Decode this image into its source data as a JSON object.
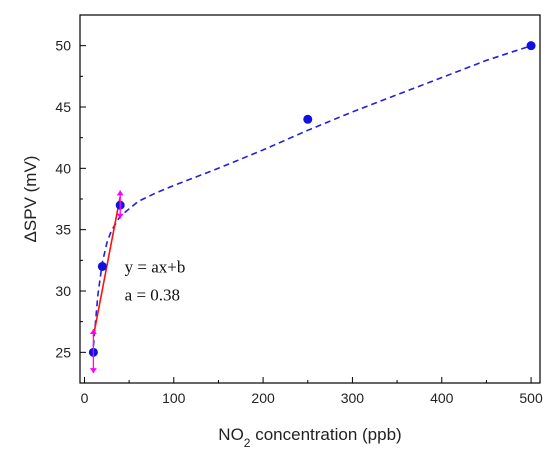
{
  "chart_data": {
    "type": "scatter",
    "title": "",
    "xlabel": {
      "main": "NO",
      "sub": "2",
      "rest": " concentration (ppb)"
    },
    "ylabel": "ΔSPV (mV)",
    "xlim": [
      -5,
      510
    ],
    "ylim": [
      22.5,
      52.5
    ],
    "xticks": [
      0,
      100,
      200,
      300,
      400,
      500
    ],
    "yticks": [
      25,
      30,
      35,
      40,
      45,
      50
    ],
    "grid": false,
    "legend": "none",
    "series": [
      {
        "kind": "points",
        "color": "#1010e0",
        "points": [
          {
            "x": 10,
            "y": 25
          },
          {
            "x": 20,
            "y": 32
          },
          {
            "x": 40,
            "y": 37
          },
          {
            "x": 250,
            "y": 44
          },
          {
            "x": 500,
            "y": 50
          }
        ]
      },
      {
        "kind": "dashed-fit",
        "color": "#2020dd",
        "x": [
          10,
          15,
          20,
          25,
          30,
          40,
          60,
          80,
          100,
          150,
          200,
          250,
          300,
          350,
          400,
          450,
          500
        ],
        "y": [
          25.5,
          29.7,
          32.3,
          33.9,
          34.9,
          36.1,
          37.3,
          38.0,
          38.6,
          40.0,
          41.5,
          43.1,
          44.6,
          46.0,
          47.4,
          48.8,
          50.0
        ]
      },
      {
        "kind": "linear-fit",
        "color": "#ff1010",
        "x": [
          10,
          40
        ],
        "y": [
          26.3,
          37.7
        ]
      }
    ],
    "error_markers": {
      "color": "#ff00ff",
      "points": [
        {
          "x": 10,
          "y": 25,
          "low": 23.3,
          "high": 26.9
        },
        {
          "x": 40,
          "y": 37,
          "low": 35.9,
          "high": 38.2
        }
      ]
    },
    "annotations": {
      "line1": "y = ax+b",
      "line2": "a = 0.38",
      "anchor": {
        "x": 45,
        "y": 31.5
      }
    }
  }
}
